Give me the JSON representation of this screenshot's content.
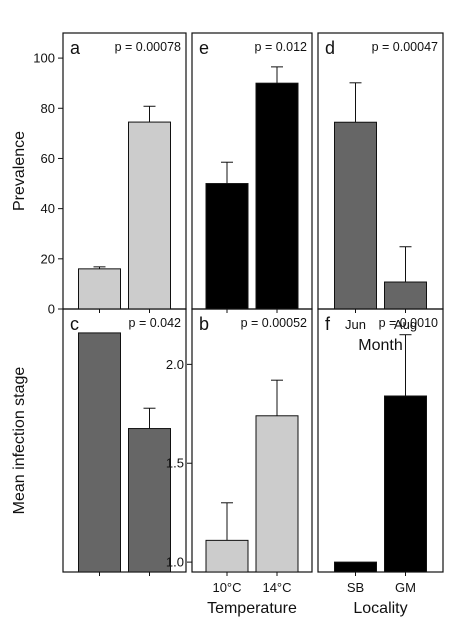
{
  "chart_data": [
    {
      "type": "bar",
      "panel": "a",
      "annotation": "p = 0.00078",
      "categories": [
        "10°C",
        "14°C"
      ],
      "values": [
        16,
        74.5
      ],
      "errors": [
        0.8,
        6.3
      ],
      "bar_color": "#cccccc",
      "ylabel": "Prevalence",
      "xlabel": "",
      "ylim": [
        0,
        110
      ],
      "yticks": [
        0,
        20,
        40,
        60,
        80,
        100
      ],
      "show_xticklabels": false
    },
    {
      "type": "bar",
      "panel": "c",
      "annotation": "p = 0.042",
      "categories": [
        "Jun",
        "Aug"
      ],
      "values": [
        100,
        60
      ],
      "errors": [
        0,
        8.5
      ],
      "bar_color": "#666666",
      "ylabel": "",
      "xlabel": "",
      "ylim": [
        0,
        110
      ],
      "show_xticklabels": false
    },
    {
      "type": "bar",
      "panel": "e",
      "annotation": "p = 0.012",
      "categories": [
        "SB",
        "GM"
      ],
      "values": [
        50,
        90
      ],
      "errors": [
        8.5,
        6.5
      ],
      "bar_color": "#000000",
      "ylabel": "",
      "xlabel": "",
      "ylim": [
        0,
        110
      ],
      "show_xticklabels": false
    },
    {
      "type": "bar",
      "panel": "b",
      "annotation": "p = 0.00052",
      "categories": [
        "10°C",
        "14°C"
      ],
      "values": [
        1.11,
        1.74
      ],
      "errors": [
        0.19,
        0.18
      ],
      "bar_color": "#cccccc",
      "ylabel": "Mean infection stage",
      "xlabel": "Temperature",
      "ylim": [
        0.95,
        2.28
      ],
      "yticks": [
        1.0,
        1.5,
        2.0
      ],
      "ytick_labels": [
        "1.0",
        "1.5",
        "2.0"
      ],
      "show_xticklabels": true
    },
    {
      "type": "bar",
      "panel": "d",
      "annotation": "p = 0.00047",
      "categories": [
        "Jun",
        "Aug"
      ],
      "values": [
        1.85,
        1.08
      ],
      "errors": [
        0.19,
        0.17
      ],
      "bar_color": "#666666",
      "ylabel": "",
      "xlabel": "Month",
      "ylim": [
        0.95,
        2.28
      ],
      "show_xticklabels": true
    },
    {
      "type": "bar",
      "panel": "f",
      "annotation": "p = 0.0010",
      "categories": [
        "SB",
        "GM"
      ],
      "values": [
        1.0,
        1.84
      ],
      "errors": [
        0,
        0.31
      ],
      "bar_color": "#000000",
      "ylabel": "",
      "xlabel": "Locality",
      "ylim": [
        0.95,
        2.28
      ],
      "show_xticklabels": true
    }
  ]
}
